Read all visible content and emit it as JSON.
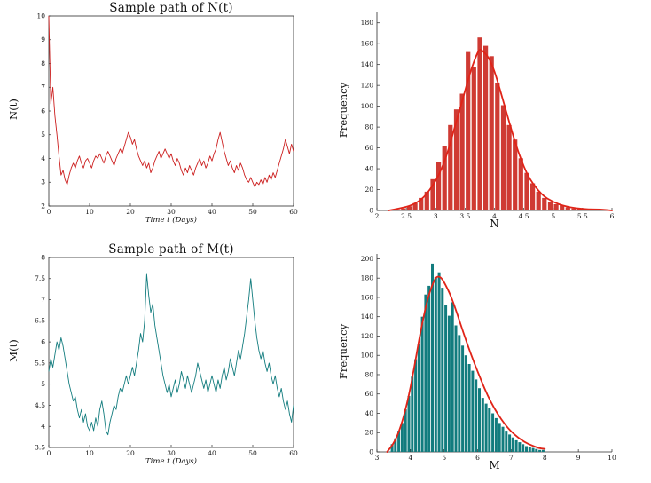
{
  "figure": {
    "background": "#ffffff"
  },
  "chart_data": [
    {
      "id": "sample-path-N",
      "type": "line",
      "title": "Sample path of N(t)",
      "xlabel": "Time t (Days)",
      "ylabel": "N(t)",
      "color": "#cc1f1f",
      "xlim": [
        0,
        60
      ],
      "ylim": [
        2,
        10
      ],
      "xticks": [
        0,
        10,
        20,
        30,
        40,
        50,
        60
      ],
      "yticks": [
        2,
        3,
        4,
        5,
        6,
        7,
        8,
        9,
        10
      ],
      "x_start": 0,
      "x_step": 0.5,
      "values": [
        10,
        6.3,
        7,
        5.8,
        5,
        4.1,
        3.3,
        3.5,
        3.1,
        2.9,
        3.3,
        3.6,
        3.8,
        3.6,
        3.9,
        4.1,
        3.8,
        3.6,
        3.9,
        4,
        3.8,
        3.6,
        3.9,
        4.1,
        4,
        4.2,
        4,
        3.8,
        4.1,
        4.3,
        4.1,
        3.9,
        3.7,
        4,
        4.2,
        4.4,
        4.2,
        4.5,
        4.8,
        5.1,
        4.9,
        4.6,
        4.8,
        4.4,
        4.1,
        3.9,
        3.7,
        3.9,
        3.6,
        3.8,
        3.4,
        3.6,
        3.9,
        4.1,
        4.3,
        4,
        4.2,
        4.4,
        4.2,
        4,
        4.2,
        3.9,
        3.7,
        4,
        3.8,
        3.5,
        3.3,
        3.6,
        3.4,
        3.7,
        3.5,
        3.3,
        3.6,
        3.8,
        4,
        3.7,
        3.9,
        3.6,
        3.8,
        4.1,
        3.9,
        4.2,
        4.4,
        4.8,
        5.1,
        4.7,
        4.3,
        4,
        3.7,
        3.9,
        3.6,
        3.4,
        3.7,
        3.5,
        3.8,
        3.6,
        3.3,
        3.1,
        3,
        3.2,
        3,
        2.8,
        3,
        2.9,
        3.1,
        2.9,
        3.2,
        3,
        3.3,
        3.1,
        3.4,
        3.2,
        3.5,
        3.8,
        4.1,
        4.4,
        4.8,
        4.5,
        4.2,
        4.6,
        4.3
      ]
    },
    {
      "id": "histogram-N",
      "type": "histogram",
      "title": "",
      "xlabel": "N",
      "ylabel": "Frequency",
      "bar_color": "#cf3a33",
      "curve_color": "#e02418",
      "xlim": [
        2,
        6
      ],
      "ylim": [
        0,
        190
      ],
      "xticks": [
        2,
        2.5,
        3,
        3.5,
        4,
        4.5,
        5,
        5.5,
        6
      ],
      "yticks": [
        0,
        20,
        40,
        60,
        80,
        100,
        120,
        140,
        160,
        180
      ],
      "bin_start": 2.35,
      "bin_step": 0.1,
      "bin_width": 0.1,
      "frequencies": [
        1,
        2,
        4,
        7,
        12,
        18,
        30,
        46,
        62,
        82,
        97,
        112,
        152,
        138,
        166,
        158,
        148,
        122,
        101,
        82,
        68,
        50,
        36,
        26,
        18,
        12,
        8,
        6,
        5,
        3,
        2,
        2,
        1
      ],
      "curve": {
        "x": [
          2.2,
          2.4,
          2.6,
          2.8,
          3,
          3.1,
          3.2,
          3.3,
          3.4,
          3.5,
          3.6,
          3.7,
          3.75,
          3.8,
          3.9,
          4,
          4.1,
          4.2,
          4.3,
          4.4,
          4.5,
          4.6,
          4.8,
          5,
          5.2,
          5.4,
          5.6,
          5.8,
          6
        ],
        "y": [
          0,
          2,
          5,
          12,
          28,
          40,
          55,
          75,
          95,
          115,
          135,
          150,
          155,
          153,
          147,
          134,
          115,
          95,
          75,
          57,
          42,
          30,
          15,
          8,
          4,
          2,
          1,
          1,
          0
        ]
      }
    },
    {
      "id": "sample-path-M",
      "type": "line",
      "title": "Sample path of M(t)",
      "xlabel": "Time t (Days)",
      "ylabel": "M(t)",
      "color": "#127c7e",
      "xlim": [
        0,
        60
      ],
      "ylim": [
        3.5,
        8
      ],
      "xticks": [
        0,
        10,
        20,
        30,
        40,
        50,
        60
      ],
      "yticks": [
        3.5,
        4,
        4.5,
        5,
        5.5,
        6,
        6.5,
        7,
        7.5,
        8
      ],
      "x_start": 0,
      "x_step": 0.5,
      "values": [
        5.3,
        5.6,
        5.4,
        5.7,
        6,
        5.8,
        6.1,
        5.9,
        5.6,
        5.3,
        5,
        4.8,
        4.6,
        4.7,
        4.4,
        4.2,
        4.4,
        4.1,
        4.3,
        4,
        3.9,
        4.1,
        3.9,
        4.2,
        4,
        4.4,
        4.6,
        4.3,
        3.9,
        3.8,
        4.1,
        4.3,
        4.5,
        4.4,
        4.7,
        4.9,
        4.8,
        5,
        5.2,
        5,
        5.2,
        5.4,
        5.2,
        5.5,
        5.8,
        6.2,
        6,
        6.5,
        7.6,
        7.1,
        6.7,
        6.9,
        6.4,
        6.1,
        5.8,
        5.5,
        5.2,
        5,
        4.8,
        5,
        4.7,
        4.9,
        5.1,
        4.8,
        5,
        5.3,
        5.1,
        4.9,
        5.2,
        5,
        4.8,
        5,
        5.2,
        5.5,
        5.3,
        5.1,
        4.9,
        5.1,
        4.8,
        5,
        5.2,
        5,
        4.8,
        5.1,
        4.9,
        5.2,
        5.4,
        5.1,
        5.3,
        5.6,
        5.4,
        5.2,
        5.5,
        5.8,
        5.6,
        5.9,
        6.2,
        6.6,
        7,
        7.5,
        7,
        6.5,
        6.1,
        5.8,
        5.6,
        5.8,
        5.5,
        5.3,
        5.5,
        5.2,
        5,
        5.2,
        4.9,
        4.7,
        4.9,
        4.6,
        4.4,
        4.6,
        4.3,
        4.1,
        4.5
      ]
    },
    {
      "id": "histogram-M",
      "type": "histogram",
      "title": "",
      "xlabel": "M",
      "ylabel": "Frequency",
      "bar_color": "#127c7e",
      "curve_color": "#e02418",
      "xlim": [
        3,
        10
      ],
      "ylim": [
        0,
        205
      ],
      "xticks": [
        3,
        4,
        5,
        6,
        7,
        8,
        9,
        10
      ],
      "yticks": [
        0,
        20,
        40,
        60,
        80,
        100,
        120,
        140,
        160,
        180,
        200
      ],
      "bin_start": 3.45,
      "bin_step": 0.1,
      "bin_width": 0.1,
      "frequencies": [
        8,
        14,
        22,
        30,
        44,
        58,
        78,
        96,
        112,
        140,
        163,
        172,
        195,
        181,
        186,
        170,
        152,
        141,
        155,
        131,
        121,
        110,
        100,
        91,
        84,
        75,
        66,
        56,
        50,
        45,
        40,
        35,
        30,
        26,
        22,
        18,
        15,
        12,
        10,
        8,
        6,
        5,
        4,
        3,
        2,
        2
      ],
      "curve": {
        "x": [
          3.3,
          3.5,
          3.7,
          3.9,
          4.1,
          4.3,
          4.5,
          4.7,
          4.8,
          4.9,
          5,
          5.2,
          5.4,
          5.6,
          5.8,
          6,
          6.2,
          6.4,
          6.6,
          6.8,
          7,
          7.2,
          7.4,
          7.6,
          7.8,
          8
        ],
        "y": [
          0,
          8,
          25,
          50,
          85,
          125,
          158,
          178,
          182,
          181,
          176,
          162,
          142,
          121,
          101,
          83,
          66,
          51,
          39,
          29,
          21,
          15,
          10,
          7,
          4,
          3
        ]
      }
    }
  ]
}
